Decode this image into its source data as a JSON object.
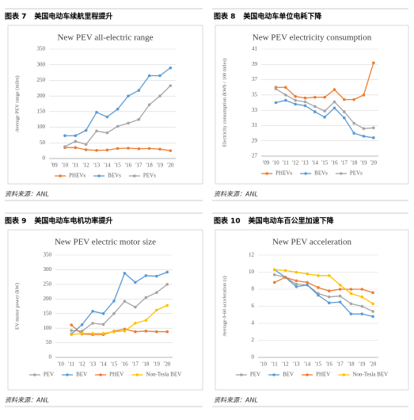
{
  "chart_data": [
    {
      "type": "line",
      "figure_label": "图表 7",
      "caption": "美国电动车续航里程提升",
      "source": "资料来源：ANL",
      "title": "New PEV all-electric range",
      "y_label": "Average PEV range (miles)",
      "categories": [
        "'09",
        "'10",
        "'11",
        "'12",
        "'13",
        "'14",
        "'15",
        "'16",
        "'17",
        "'18",
        "'19",
        "'20"
      ],
      "ylim": [
        0,
        350
      ],
      "yticks": [
        0,
        50,
        100,
        150,
        200,
        250,
        300,
        350
      ],
      "grid": true,
      "series": [
        {
          "name": "PHEVs",
          "color": "#ed7d31",
          "values": [
            null,
            35,
            35,
            28,
            26,
            27,
            32,
            33,
            31,
            32,
            30,
            25
          ]
        },
        {
          "name": "BEVs",
          "color": "#5b9bd5",
          "values": [
            null,
            73,
            73,
            90,
            148,
            133,
            158,
            200,
            218,
            265,
            265,
            290
          ]
        },
        {
          "name": "PEVs",
          "color": "#a5a5a5",
          "values": [
            null,
            38,
            55,
            45,
            88,
            82,
            103,
            113,
            125,
            172,
            200,
            233
          ]
        }
      ]
    },
    {
      "type": "line",
      "figure_label": "图表 8",
      "caption": "美国电动车单位电耗下降",
      "source": "资料来源：ANL",
      "title": "New PEV electricity consumption",
      "y_label": "Electricity consumption (kWh / 100 miles)",
      "categories": [
        "'09",
        "'10",
        "'11",
        "'12",
        "'13",
        "'14",
        "'15",
        "'16",
        "'17",
        "'18",
        "'19",
        "'20"
      ],
      "ylim": [
        27,
        41
      ],
      "yticks": [
        27,
        29,
        31,
        33,
        35,
        37,
        39,
        41
      ],
      "grid": true,
      "series": [
        {
          "name": "PHEVs",
          "color": "#ed7d31",
          "values": [
            null,
            36,
            36,
            34.8,
            34.6,
            34.7,
            34.7,
            35.7,
            34.4,
            34.4,
            35,
            39.2
          ]
        },
        {
          "name": "BEVs",
          "color": "#5b9bd5",
          "values": [
            null,
            34,
            34.3,
            33.8,
            33.6,
            32.8,
            32.1,
            33.3,
            32,
            30,
            29.6,
            29.4
          ]
        },
        {
          "name": "PEVs",
          "color": "#a5a5a5",
          "values": [
            null,
            35.8,
            35,
            34.3,
            34.1,
            33.5,
            32.9,
            34.1,
            32.8,
            31.3,
            30.6,
            30.7
          ]
        }
      ]
    },
    {
      "type": "line",
      "figure_label": "图表 9",
      "caption": "美国电动车电机功率提升",
      "source": "资料来源：ANL",
      "title": "New PEV electric motor size",
      "y_label": "EV motor power (kW)",
      "categories": [
        "'10",
        "'11",
        "'12",
        "'13",
        "'14",
        "'15",
        "'16",
        "'17",
        "'18",
        "'19",
        "'20"
      ],
      "ylim": [
        0,
        350
      ],
      "yticks": [
        0,
        50,
        100,
        150,
        200,
        250,
        300,
        350
      ],
      "grid": true,
      "series": [
        {
          "name": "PEV",
          "color": "#a5a5a5",
          "values": [
            null,
            92,
            90,
            117,
            113,
            150,
            192,
            172,
            205,
            222,
            250
          ]
        },
        {
          "name": "BEV",
          "color": "#5b9bd5",
          "values": [
            null,
            80,
            112,
            158,
            150,
            193,
            288,
            257,
            280,
            278,
            292
          ]
        },
        {
          "name": "PHEV",
          "color": "#ed7d31",
          "values": [
            null,
            111,
            80,
            78,
            78,
            90,
            97,
            88,
            90,
            88,
            88
          ]
        },
        {
          "name": "Non-Tesla BEV",
          "color": "#ffc000",
          "values": [
            null,
            78,
            82,
            82,
            82,
            88,
            90,
            117,
            127,
            162,
            178
          ]
        }
      ]
    },
    {
      "type": "line",
      "figure_label": "图表 10",
      "caption": "美国电动车百公里加速下降",
      "source": "资料来源：ANL",
      "title": "New PEV acceleration",
      "y_label": "Average 0-60 acceleration (s)",
      "categories": [
        "'10",
        "'11",
        "'12",
        "'13",
        "'14",
        "'15",
        "'16",
        "'17",
        "'18",
        "'19",
        "'20"
      ],
      "ylim": [
        0,
        12
      ],
      "yticks": [
        0,
        2,
        4,
        6,
        8,
        10,
        12
      ],
      "grid": true,
      "series": [
        {
          "name": "PEV",
          "color": "#a5a5a5",
          "values": [
            null,
            9.7,
            9.4,
            8.6,
            8.5,
            7.5,
            7.1,
            7.2,
            6.3,
            6.0,
            5.4
          ]
        },
        {
          "name": "BEV",
          "color": "#5b9bd5",
          "values": [
            null,
            10.3,
            9.4,
            8.3,
            8.5,
            7.3,
            6.4,
            6.5,
            5.1,
            5.1,
            4.8
          ]
        },
        {
          "name": "PHEV",
          "color": "#ed7d31",
          "values": [
            null,
            8.8,
            9.4,
            9.0,
            8.8,
            8.2,
            7.8,
            8.0,
            8.0,
            8.0,
            7.6
          ]
        },
        {
          "name": "Non-Tesla BEV",
          "color": "#ffc000",
          "values": [
            null,
            10.3,
            10.2,
            10.0,
            9.8,
            9.6,
            9.6,
            8.5,
            7.5,
            7.1,
            6.3
          ]
        }
      ]
    }
  ]
}
